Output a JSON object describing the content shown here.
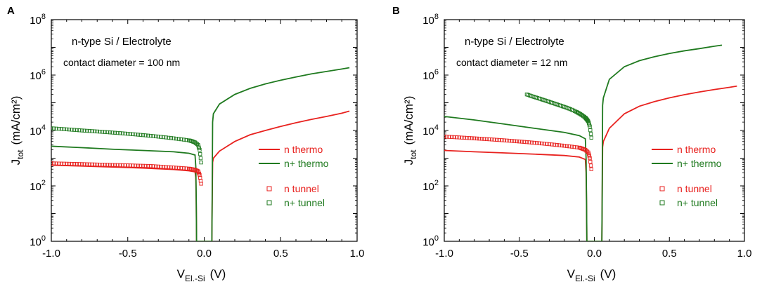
{
  "figure": {
    "panels": [
      {
        "letter": "A",
        "annotation_line1": "n-type Si / Electrolyte",
        "annotation_line2": "contact diameter = 100  nm",
        "xlabel_main": "V",
        "xlabel_sub": "El.-Si",
        "xlabel_unit": "(V)",
        "ylabel_main": "J",
        "ylabel_sub": "tot",
        "ylabel_unit": "(mA/cm²)",
        "legend": [
          {
            "label": "n thermo",
            "kind": "line",
            "color": "#e8221f"
          },
          {
            "label": "n+ thermo",
            "kind": "line",
            "color": "#1f7a1f"
          },
          {
            "label": "n tunnel",
            "kind": "marker",
            "color": "#e8221f"
          },
          {
            "label": "n+ tunnel",
            "kind": "marker",
            "color": "#1f7a1f"
          }
        ]
      },
      {
        "letter": "B",
        "annotation_line1": "n-type Si / Electrolyte",
        "annotation_line2": "contact diameter = 12  nm",
        "xlabel_main": "V",
        "xlabel_sub": "El.-Si",
        "xlabel_unit": "(V)",
        "ylabel_main": "J",
        "ylabel_sub": "tot",
        "ylabel_unit": "(mA/cm²)",
        "legend": [
          {
            "label": "n thermo",
            "kind": "line",
            "color": "#e8221f"
          },
          {
            "label": "n+ thermo",
            "kind": "line",
            "color": "#1f7a1f"
          },
          {
            "label": "n tunnel",
            "kind": "marker",
            "color": "#e8221f"
          },
          {
            "label": "n+ tunnel",
            "kind": "marker",
            "color": "#1f7a1f"
          }
        ]
      }
    ]
  },
  "chart_data": [
    {
      "type": "line",
      "title": "A",
      "xlabel": "V El.-Si (V)",
      "ylabel": "J tot (mA/cm²)",
      "xlim": [
        -1.0,
        1.0
      ],
      "ylim": [
        1,
        100000000
      ],
      "yscale": "log",
      "xticks": [
        -1.0,
        -0.5,
        0.0,
        0.5,
        1.0
      ],
      "xtick_labels": [
        "-1.0",
        "-0.5",
        "0.0",
        "0.5",
        "1.0"
      ],
      "yticks": [
        1,
        100,
        10000,
        1000000,
        100000000
      ],
      "ytick_labels": [
        {
          "base": "10",
          "exp": "0"
        },
        {
          "base": "10",
          "exp": "2"
        },
        {
          "base": "10",
          "exp": "4"
        },
        {
          "base": "10",
          "exp": "6"
        },
        {
          "base": "10",
          "exp": "8"
        }
      ],
      "series": [
        {
          "name": "n thermo",
          "kind": "line",
          "color": "#e8221f",
          "x": [
            -1.0,
            -0.8,
            -0.6,
            -0.4,
            -0.2,
            -0.1,
            -0.06,
            -0.055,
            -0.052,
            -0.05,
            0.05,
            0.052,
            0.055,
            0.06,
            0.1,
            0.2,
            0.3,
            0.4,
            0.5,
            0.6,
            0.7,
            0.8,
            0.9,
            0.95
          ],
          "y": [
            560,
            520,
            480,
            440,
            390,
            350,
            320,
            200,
            20,
            1,
            1,
            20,
            700,
            1000,
            1800,
            4000,
            7000,
            10000,
            14000,
            19000,
            25000,
            32000,
            42000,
            50000
          ]
        },
        {
          "name": "n+ thermo",
          "kind": "line",
          "color": "#1f7a1f",
          "x": [
            -1.0,
            -0.8,
            -0.6,
            -0.4,
            -0.2,
            -0.1,
            -0.06,
            -0.055,
            -0.052,
            -0.05,
            0.05,
            0.052,
            0.055,
            0.06,
            0.1,
            0.2,
            0.3,
            0.4,
            0.5,
            0.6,
            0.7,
            0.8,
            0.9,
            0.95
          ],
          "y": [
            2700,
            2400,
            2100,
            1900,
            1700,
            1500,
            1300,
            500,
            30,
            1,
            1,
            30,
            20000,
            40000,
            90000,
            200000,
            330000,
            480000,
            650000,
            850000,
            1100000,
            1350000,
            1650000,
            1850000
          ]
        },
        {
          "name": "n tunnel",
          "kind": "scatter",
          "color": "#e8221f",
          "x": [
            -1.0,
            -0.95,
            -0.9,
            -0.85,
            -0.8,
            -0.75,
            -0.7,
            -0.65,
            -0.6,
            -0.55,
            -0.5,
            -0.45,
            -0.4,
            -0.35,
            -0.3,
            -0.25,
            -0.2,
            -0.15,
            -0.1,
            -0.08,
            -0.06,
            -0.04,
            -0.03,
            -0.02
          ],
          "y": [
            650,
            640,
            630,
            620,
            610,
            600,
            590,
            580,
            570,
            560,
            550,
            540,
            530,
            520,
            500,
            480,
            460,
            440,
            420,
            400,
            380,
            340,
            250,
            120
          ]
        },
        {
          "name": "n+ tunnel",
          "kind": "scatter",
          "color": "#1f7a1f",
          "x": [
            -1.0,
            -0.95,
            -0.9,
            -0.85,
            -0.8,
            -0.75,
            -0.7,
            -0.65,
            -0.6,
            -0.55,
            -0.5,
            -0.45,
            -0.4,
            -0.35,
            -0.3,
            -0.25,
            -0.2,
            -0.15,
            -0.1,
            -0.08,
            -0.06,
            -0.04,
            -0.03,
            -0.02
          ],
          "y": [
            12000,
            11500,
            11000,
            10500,
            10000,
            9600,
            9200,
            8800,
            8400,
            8000,
            7600,
            7200,
            6800,
            6400,
            6000,
            5600,
            5200,
            4800,
            4400,
            4100,
            3700,
            3000,
            2000,
            700
          ]
        }
      ]
    },
    {
      "type": "line",
      "title": "B",
      "xlabel": "V El.-Si (V)",
      "ylabel": "J tot (mA/cm²)",
      "xlim": [
        -1.0,
        1.0
      ],
      "ylim": [
        1,
        100000000
      ],
      "yscale": "log",
      "xticks": [
        -1.0,
        -0.5,
        0.0,
        0.5,
        1.0
      ],
      "xtick_labels": [
        "-1.0",
        "-0.5",
        "0.0",
        "0.5",
        "1.0"
      ],
      "yticks": [
        1,
        100,
        10000,
        1000000,
        100000000
      ],
      "ytick_labels": [
        {
          "base": "10",
          "exp": "0"
        },
        {
          "base": "10",
          "exp": "2"
        },
        {
          "base": "10",
          "exp": "4"
        },
        {
          "base": "10",
          "exp": "6"
        },
        {
          "base": "10",
          "exp": "8"
        }
      ],
      "series": [
        {
          "name": "n thermo",
          "kind": "line",
          "color": "#e8221f",
          "x": [
            -1.0,
            -0.8,
            -0.6,
            -0.4,
            -0.2,
            -0.1,
            -0.06,
            -0.055,
            -0.052,
            -0.05,
            0.05,
            0.052,
            0.055,
            0.06,
            0.1,
            0.2,
            0.3,
            0.4,
            0.5,
            0.6,
            0.7,
            0.8,
            0.9,
            0.95
          ],
          "y": [
            1900,
            1700,
            1550,
            1400,
            1250,
            1100,
            900,
            300,
            20,
            1,
            1,
            20,
            2500,
            4000,
            12000,
            40000,
            75000,
            110000,
            150000,
            195000,
            245000,
            300000,
            360000,
            400000
          ]
        },
        {
          "name": "n+ thermo",
          "kind": "line",
          "color": "#1f7a1f",
          "x": [
            -1.0,
            -0.8,
            -0.6,
            -0.4,
            -0.2,
            -0.1,
            -0.06,
            -0.055,
            -0.052,
            -0.05,
            0.05,
            0.052,
            0.055,
            0.06,
            0.1,
            0.2,
            0.3,
            0.4,
            0.5,
            0.6,
            0.7,
            0.8,
            0.85
          ],
          "y": [
            32000,
            24000,
            17000,
            12000,
            8500,
            6500,
            5000,
            1000,
            30,
            1,
            1,
            30,
            80000,
            150000,
            700000,
            2000000,
            3300000,
            4600000,
            6000000,
            7500000,
            9000000,
            11000000,
            12000000
          ]
        },
        {
          "name": "n tunnel",
          "kind": "scatter",
          "color": "#e8221f",
          "x": [
            -1.0,
            -0.95,
            -0.9,
            -0.85,
            -0.8,
            -0.75,
            -0.7,
            -0.65,
            -0.6,
            -0.55,
            -0.5,
            -0.45,
            -0.4,
            -0.35,
            -0.3,
            -0.25,
            -0.2,
            -0.15,
            -0.1,
            -0.08,
            -0.06,
            -0.04,
            -0.03,
            -0.02
          ],
          "y": [
            6000,
            5800,
            5600,
            5400,
            5200,
            5000,
            4800,
            4600,
            4400,
            4200,
            4000,
            3800,
            3600,
            3400,
            3200,
            3000,
            2800,
            2600,
            2400,
            2200,
            2000,
            1600,
            1000,
            400
          ]
        },
        {
          "name": "n+ tunnel",
          "kind": "scatter",
          "color": "#1f7a1f",
          "x": [
            -0.45,
            -0.42,
            -0.39,
            -0.36,
            -0.33,
            -0.3,
            -0.27,
            -0.24,
            -0.21,
            -0.18,
            -0.15,
            -0.12,
            -0.1,
            -0.08,
            -0.06,
            -0.05,
            -0.04,
            -0.03,
            -0.02
          ],
          "y": [
            200000,
            175000,
            155000,
            138000,
            122000,
            108000,
            95000,
            84000,
            74000,
            65000,
            56000,
            47000,
            41000,
            35000,
            29000,
            25000,
            21000,
            14000,
            5500
          ]
        }
      ]
    }
  ]
}
